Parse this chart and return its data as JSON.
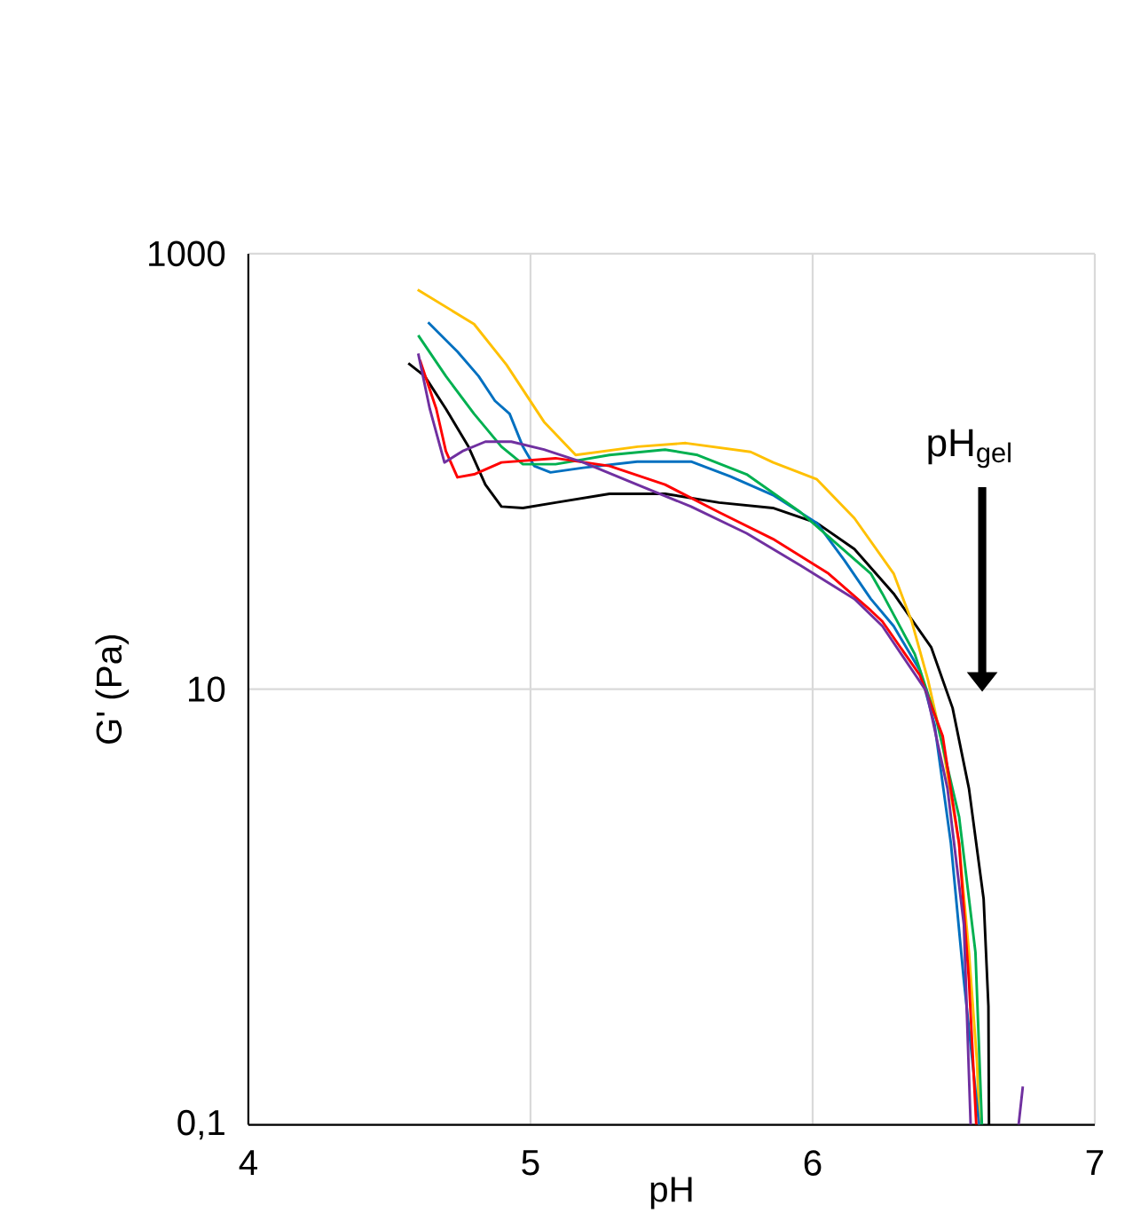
{
  "chart_data": {
    "type": "line",
    "xlabel": "pH",
    "ylabel": "G' (Pa)",
    "log": "y",
    "grid": true,
    "marker": "none",
    "line_style": "solid",
    "xlim": [
      4,
      7
    ],
    "xticks": [
      4,
      5,
      6,
      7
    ],
    "ylim": [
      0.1,
      1000
    ],
    "yticks": [
      {
        "value": 0.1,
        "label": "0,1"
      },
      10,
      1000
    ],
    "annotations": [
      "pH$_{gel}$"
    ],
    "series": [
      {
        "color": "#000000",
        "x": [
          4.567,
          4.625,
          4.7,
          4.78,
          4.84,
          4.897,
          4.973,
          5.089,
          5.28,
          5.477,
          5.668,
          5.859,
          6.015,
          6.148,
          6.287,
          6.42,
          6.496,
          6.554,
          6.606,
          6.623,
          6.625
        ],
        "values": [
          314,
          274,
          194,
          130,
          87,
          69,
          68,
          72,
          79,
          79,
          72,
          68,
          58,
          44,
          27.5,
          15.6,
          8.2,
          3.5,
          1.09,
          0.35,
          0.1
        ]
      },
      {
        "color": "#ffc000",
        "x": [
          4.6,
          4.8,
          4.915,
          5.048,
          5.16,
          5.38,
          5.55,
          5.78,
          5.86,
          6.015,
          6.148,
          6.287,
          6.351,
          6.409,
          6.461,
          6.519,
          6.554,
          6.583,
          6.59
        ],
        "values": [
          684,
          475,
          309,
          169,
          119,
          130,
          135,
          123,
          110,
          92,
          61,
          34,
          20.5,
          11,
          5.5,
          1.96,
          0.62,
          0.19,
          0.1
        ]
      },
      {
        "color": "#0070c0",
        "x": [
          4.637,
          4.741,
          4.816,
          4.874,
          4.926,
          4.973,
          5.013,
          5.071,
          5.187,
          5.378,
          5.569,
          5.708,
          5.859,
          6.015,
          6.113,
          6.206,
          6.287,
          6.38,
          6.432,
          6.49,
          6.536,
          6.59
        ],
        "values": [
          484,
          355,
          274,
          211,
          184,
          130,
          106,
          99,
          104,
          111,
          111,
          95,
          78,
          58,
          39,
          26,
          19.5,
          12.2,
          6.9,
          1.96,
          0.46,
          0.1
        ]
      },
      {
        "color": "#00b050",
        "x": [
          4.602,
          4.7,
          4.8,
          4.897,
          4.973,
          5.089,
          5.28,
          5.477,
          5.592,
          5.766,
          5.957,
          6.09,
          6.206,
          6.247,
          6.362,
          6.438,
          6.519,
          6.577,
          6.6
        ],
        "values": [
          422,
          274,
          184,
          130,
          108,
          108,
          119,
          126,
          119,
          97,
          65,
          46,
          34,
          27.5,
          14.5,
          7.3,
          2.6,
          0.62,
          0.1
        ]
      },
      {
        "color": "#ff0000",
        "x": [
          4.608,
          4.666,
          4.7,
          4.741,
          4.8,
          4.897,
          5.089,
          5.28,
          5.477,
          5.668,
          5.859,
          6.056,
          6.206,
          6.247,
          6.38,
          6.461,
          6.519,
          6.554,
          6.58
        ],
        "values": [
          325,
          194,
          124,
          94,
          97,
          110,
          115,
          106,
          87,
          65,
          49,
          34,
          23,
          20.5,
          11.6,
          6.1,
          1.96,
          0.46,
          0.1
        ]
      },
      {
        "color": "#7030a0",
        "x": [
          4.602,
          4.643,
          4.695,
          4.759,
          4.84,
          4.932,
          5.048,
          5.187,
          5.378,
          5.569,
          5.766,
          5.957,
          6.148,
          6.247,
          6.403,
          6.478,
          6.536,
          6.56,
          6.65,
          6.73,
          6.745
        ],
        "values": [
          348,
          194,
          110,
          124,
          137,
          137,
          126,
          110,
          87,
          69,
          52,
          37,
          26,
          19.5,
          9.8,
          3.5,
          0.83,
          0.1,
          null,
          0.1,
          0.15
        ]
      }
    ]
  }
}
